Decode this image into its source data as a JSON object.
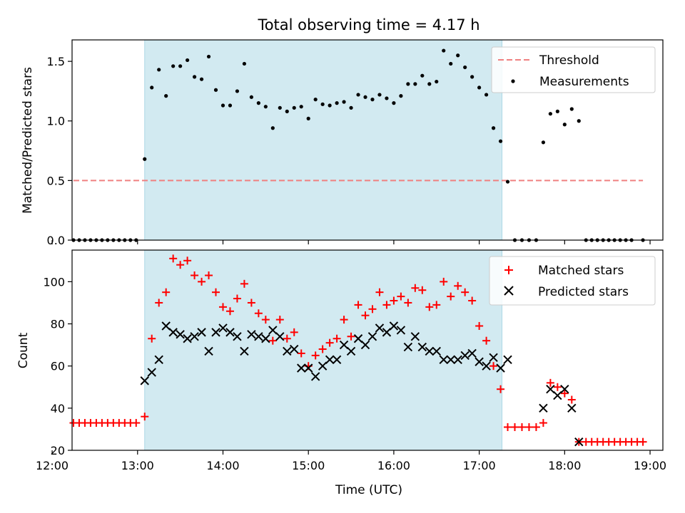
{
  "chart_data": [
    {
      "type": "scatter",
      "title": "Total observing time = 4.17 h",
      "xlabel": "",
      "ylabel": "Matched/Predicted stars",
      "ylim": [
        0,
        1.68
      ],
      "yticks": [
        0.0,
        0.5,
        1.0,
        1.5
      ],
      "ytick_labels": [
        "0.0",
        "0.5",
        "1.0",
        "1.5"
      ],
      "xlim": [
        "12:14",
        "19:09"
      ],
      "xticks": [
        "12:00",
        "13:00",
        "14:00",
        "15:00",
        "16:00",
        "17:00",
        "18:00",
        "19:00"
      ],
      "shaded_span": {
        "start": "13:05",
        "end": "17:16",
        "color": "#add8e6"
      },
      "legend": {
        "position": "top-right",
        "entries": [
          "Threshold",
          "Measurements"
        ]
      },
      "threshold": {
        "name": "Threshold",
        "value": 0.5,
        "x_start": "12:15",
        "x_end": "18:55",
        "color": "#f08080",
        "style": "dashed"
      },
      "series": [
        {
          "name": "Measurements",
          "color": "#000000",
          "marker": "dot",
          "points": [
            [
              "12:15",
              0
            ],
            [
              "12:19",
              0
            ],
            [
              "12:23",
              0
            ],
            [
              "12:27",
              0
            ],
            [
              "12:31",
              0
            ],
            [
              "12:35",
              0
            ],
            [
              "12:39",
              0
            ],
            [
              "12:43",
              0
            ],
            [
              "12:47",
              0
            ],
            [
              "12:51",
              0
            ],
            [
              "12:55",
              0
            ],
            [
              "12:59",
              0
            ],
            [
              "13:05",
              0.68
            ],
            [
              "13:10",
              1.28
            ],
            [
              "13:15",
              1.43
            ],
            [
              "13:20",
              1.21
            ],
            [
              "13:25",
              1.46
            ],
            [
              "13:30",
              1.46
            ],
            [
              "13:35",
              1.51
            ],
            [
              "13:40",
              1.37
            ],
            [
              "13:45",
              1.35
            ],
            [
              "13:50",
              1.54
            ],
            [
              "13:55",
              1.26
            ],
            [
              "14:00",
              1.13
            ],
            [
              "14:05",
              1.13
            ],
            [
              "14:10",
              1.25
            ],
            [
              "14:15",
              1.48
            ],
            [
              "14:20",
              1.2
            ],
            [
              "14:25",
              1.15
            ],
            [
              "14:30",
              1.12
            ],
            [
              "14:35",
              0.94
            ],
            [
              "14:40",
              1.11
            ],
            [
              "14:45",
              1.08
            ],
            [
              "14:50",
              1.11
            ],
            [
              "14:55",
              1.12
            ],
            [
              "15:00",
              1.02
            ],
            [
              "15:05",
              1.18
            ],
            [
              "15:10",
              1.14
            ],
            [
              "15:15",
              1.13
            ],
            [
              "15:20",
              1.15
            ],
            [
              "15:25",
              1.16
            ],
            [
              "15:30",
              1.11
            ],
            [
              "15:35",
              1.22
            ],
            [
              "15:40",
              1.2
            ],
            [
              "15:45",
              1.18
            ],
            [
              "15:50",
              1.22
            ],
            [
              "15:55",
              1.19
            ],
            [
              "16:00",
              1.15
            ],
            [
              "16:05",
              1.21
            ],
            [
              "16:10",
              1.31
            ],
            [
              "16:15",
              1.31
            ],
            [
              "16:20",
              1.38
            ],
            [
              "16:25",
              1.31
            ],
            [
              "16:30",
              1.33
            ],
            [
              "16:35",
              1.59
            ],
            [
              "16:40",
              1.48
            ],
            [
              "16:45",
              1.55
            ],
            [
              "16:50",
              1.45
            ],
            [
              "16:55",
              1.37
            ],
            [
              "17:00",
              1.28
            ],
            [
              "17:05",
              1.22
            ],
            [
              "17:10",
              0.94
            ],
            [
              "17:15",
              0.83
            ],
            [
              "17:20",
              0.49
            ],
            [
              "17:25",
              0
            ],
            [
              "17:30",
              0
            ],
            [
              "17:35",
              0
            ],
            [
              "17:40",
              0
            ],
            [
              "17:45",
              0.82
            ],
            [
              "17:50",
              1.06
            ],
            [
              "17:55",
              1.08
            ],
            [
              "18:00",
              0.97
            ],
            [
              "18:05",
              1.1
            ],
            [
              "18:10",
              1.0
            ],
            [
              "18:15",
              0
            ],
            [
              "18:19",
              0
            ],
            [
              "18:23",
              0
            ],
            [
              "18:27",
              0
            ],
            [
              "18:31",
              0
            ],
            [
              "18:35",
              0
            ],
            [
              "18:39",
              0
            ],
            [
              "18:43",
              0
            ],
            [
              "18:47",
              0
            ],
            [
              "18:55",
              0
            ]
          ]
        }
      ]
    },
    {
      "type": "scatter",
      "title": "",
      "xlabel": "Time (UTC)",
      "ylabel": "Count",
      "ylim": [
        20,
        115
      ],
      "yticks": [
        20,
        40,
        60,
        80,
        100
      ],
      "ytick_labels": [
        "20",
        "40",
        "60",
        "80",
        "100"
      ],
      "xlim": [
        "12:14",
        "19:09"
      ],
      "xticks": [
        "12:00",
        "13:00",
        "14:00",
        "15:00",
        "16:00",
        "17:00",
        "18:00",
        "19:00"
      ],
      "xtick_labels": [
        "12:00",
        "13:00",
        "14:00",
        "15:00",
        "16:00",
        "17:00",
        "18:00",
        "19:00"
      ],
      "shaded_span": {
        "start": "13:05",
        "end": "17:16",
        "color": "#add8e6"
      },
      "legend": {
        "position": "top-right",
        "entries": [
          "Matched stars",
          "Predicted stars"
        ]
      },
      "series": [
        {
          "name": "Matched stars",
          "color": "#ff0000",
          "marker": "plus",
          "points": [
            [
              "12:15",
              33
            ],
            [
              "12:19",
              33
            ],
            [
              "12:23",
              33
            ],
            [
              "12:27",
              33
            ],
            [
              "12:31",
              33
            ],
            [
              "12:35",
              33
            ],
            [
              "12:39",
              33
            ],
            [
              "12:43",
              33
            ],
            [
              "12:47",
              33
            ],
            [
              "12:51",
              33
            ],
            [
              "12:55",
              33
            ],
            [
              "12:59",
              33
            ],
            [
              "13:05",
              36
            ],
            [
              "13:10",
              73
            ],
            [
              "13:15",
              90
            ],
            [
              "13:20",
              95
            ],
            [
              "13:25",
              111
            ],
            [
              "13:30",
              108
            ],
            [
              "13:35",
              110
            ],
            [
              "13:40",
              103
            ],
            [
              "13:45",
              100
            ],
            [
              "13:50",
              103
            ],
            [
              "13:55",
              95
            ],
            [
              "14:00",
              88
            ],
            [
              "14:05",
              86
            ],
            [
              "14:10",
              92
            ],
            [
              "14:15",
              99
            ],
            [
              "14:20",
              90
            ],
            [
              "14:25",
              85
            ],
            [
              "14:30",
              82
            ],
            [
              "14:35",
              72
            ],
            [
              "14:40",
              82
            ],
            [
              "14:45",
              73
            ],
            [
              "14:50",
              76
            ],
            [
              "14:55",
              66
            ],
            [
              "15:00",
              60
            ],
            [
              "15:05",
              65
            ],
            [
              "15:10",
              68
            ],
            [
              "15:15",
              71
            ],
            [
              "15:20",
              73
            ],
            [
              "15:25",
              82
            ],
            [
              "15:30",
              74
            ],
            [
              "15:35",
              89
            ],
            [
              "15:40",
              84
            ],
            [
              "15:45",
              87
            ],
            [
              "15:50",
              95
            ],
            [
              "15:55",
              89
            ],
            [
              "16:00",
              91
            ],
            [
              "16:05",
              93
            ],
            [
              "16:10",
              90
            ],
            [
              "16:15",
              97
            ],
            [
              "16:20",
              96
            ],
            [
              "16:25",
              88
            ],
            [
              "16:30",
              89
            ],
            [
              "16:35",
              100
            ],
            [
              "16:40",
              93
            ],
            [
              "16:45",
              98
            ],
            [
              "16:50",
              95
            ],
            [
              "16:55",
              91
            ],
            [
              "17:00",
              79
            ],
            [
              "17:05",
              72
            ],
            [
              "17:10",
              60
            ],
            [
              "17:15",
              49
            ],
            [
              "17:20",
              31
            ],
            [
              "17:25",
              31
            ],
            [
              "17:30",
              31
            ],
            [
              "17:35",
              31
            ],
            [
              "17:40",
              31
            ],
            [
              "17:45",
              33
            ],
            [
              "17:50",
              52
            ],
            [
              "17:55",
              50
            ],
            [
              "18:00",
              47
            ],
            [
              "18:05",
              44
            ],
            [
              "18:10",
              24
            ],
            [
              "18:15",
              24
            ],
            [
              "18:19",
              24
            ],
            [
              "18:23",
              24
            ],
            [
              "18:27",
              24
            ],
            [
              "18:31",
              24
            ],
            [
              "18:35",
              24
            ],
            [
              "18:39",
              24
            ],
            [
              "18:43",
              24
            ],
            [
              "18:47",
              24
            ],
            [
              "18:51",
              24
            ],
            [
              "18:55",
              24
            ]
          ]
        },
        {
          "name": "Predicted stars",
          "color": "#000000",
          "marker": "cross",
          "points": [
            [
              "13:05",
              53
            ],
            [
              "13:10",
              57
            ],
            [
              "13:15",
              63
            ],
            [
              "13:20",
              79
            ],
            [
              "13:25",
              76
            ],
            [
              "13:30",
              75
            ],
            [
              "13:35",
              73
            ],
            [
              "13:40",
              74
            ],
            [
              "13:45",
              76
            ],
            [
              "13:50",
              67
            ],
            [
              "13:55",
              76
            ],
            [
              "14:00",
              78
            ],
            [
              "14:05",
              76
            ],
            [
              "14:10",
              74
            ],
            [
              "14:15",
              67
            ],
            [
              "14:20",
              75
            ],
            [
              "14:25",
              74
            ],
            [
              "14:30",
              73
            ],
            [
              "14:35",
              77
            ],
            [
              "14:40",
              74
            ],
            [
              "14:45",
              67
            ],
            [
              "14:50",
              68
            ],
            [
              "14:55",
              59
            ],
            [
              "15:00",
              59
            ],
            [
              "15:05",
              55
            ],
            [
              "15:10",
              60
            ],
            [
              "15:15",
              63
            ],
            [
              "15:20",
              63
            ],
            [
              "15:25",
              70
            ],
            [
              "15:30",
              67
            ],
            [
              "15:35",
              73
            ],
            [
              "15:40",
              70
            ],
            [
              "15:45",
              74
            ],
            [
              "15:50",
              78
            ],
            [
              "15:55",
              76
            ],
            [
              "16:00",
              79
            ],
            [
              "16:05",
              77
            ],
            [
              "16:10",
              69
            ],
            [
              "16:15",
              74
            ],
            [
              "16:20",
              69
            ],
            [
              "16:25",
              67
            ],
            [
              "16:30",
              67
            ],
            [
              "16:35",
              63
            ],
            [
              "16:40",
              63
            ],
            [
              "16:45",
              63
            ],
            [
              "16:50",
              65
            ],
            [
              "16:55",
              66
            ],
            [
              "17:00",
              62
            ],
            [
              "17:05",
              60
            ],
            [
              "17:10",
              64
            ],
            [
              "17:15",
              59
            ],
            [
              "17:20",
              63
            ],
            [
              "17:45",
              40
            ],
            [
              "17:50",
              49
            ],
            [
              "17:55",
              46
            ],
            [
              "18:00",
              49
            ],
            [
              "18:05",
              40
            ],
            [
              "18:10",
              24
            ]
          ]
        }
      ]
    }
  ]
}
